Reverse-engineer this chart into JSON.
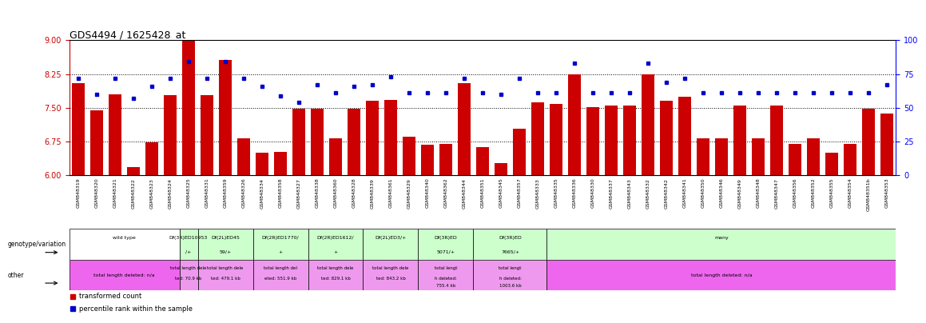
{
  "title": "GDS4494 / 1625428_at",
  "ylim": [
    6,
    9
  ],
  "yticks_left": [
    6,
    6.75,
    7.5,
    8.25,
    9
  ],
  "yticks_right": [
    0,
    25,
    50,
    75,
    100
  ],
  "bar_color": "#CC0000",
  "dot_color": "#0000CC",
  "samples": [
    "GSM848319",
    "GSM848320",
    "GSM848321",
    "GSM848322",
    "GSM848323",
    "GSM848324",
    "GSM848325",
    "GSM848331",
    "GSM848359",
    "GSM848326",
    "GSM848334",
    "GSM848358",
    "GSM848327",
    "GSM848338",
    "GSM848360",
    "GSM848328",
    "GSM848339",
    "GSM848361",
    "GSM848329",
    "GSM848340",
    "GSM848362",
    "GSM848344",
    "GSM848351",
    "GSM848345",
    "GSM848357",
    "GSM848333",
    "GSM848335",
    "GSM848336",
    "GSM848330",
    "GSM848337",
    "GSM848343",
    "GSM848332",
    "GSM848342",
    "GSM848341",
    "GSM848350",
    "GSM848346",
    "GSM848349",
    "GSM848348",
    "GSM848347",
    "GSM848356",
    "GSM848352",
    "GSM848355",
    "GSM848354",
    "GSM848351b",
    "GSM848353"
  ],
  "bar_values": [
    8.05,
    7.45,
    7.8,
    6.18,
    6.73,
    7.78,
    9.0,
    7.78,
    8.57,
    6.82,
    6.5,
    6.52,
    7.47,
    7.47,
    6.82,
    7.47,
    7.65,
    7.67,
    6.85,
    6.68,
    6.7,
    8.05,
    6.63,
    6.28,
    7.03,
    7.62,
    7.58,
    8.25,
    7.52,
    7.55,
    7.55,
    8.25,
    7.65,
    7.75,
    6.82,
    6.83,
    7.55,
    6.83,
    7.55,
    6.7,
    6.82,
    6.5,
    6.7,
    7.47,
    7.38
  ],
  "dot_values_pct": [
    72,
    60,
    72,
    57,
    66,
    72,
    84,
    72,
    84,
    72,
    66,
    59,
    54,
    67,
    61,
    66,
    67,
    73,
    61,
    61,
    61,
    72,
    61,
    60,
    72,
    61,
    61,
    83,
    61,
    61,
    61,
    83,
    69,
    72,
    61,
    61,
    61,
    61,
    61,
    61,
    61,
    61,
    61,
    61,
    67
  ],
  "genotype_groups": [
    {
      "label": "wild type",
      "start": 0,
      "end": 5,
      "color": "#ffffff",
      "sub": ""
    },
    {
      "label": "Df(3R)ED10953",
      "start": 6,
      "end": 6,
      "color": "#ccffcc",
      "sub": "/+"
    },
    {
      "label": "Df(2L)ED45",
      "start": 7,
      "end": 9,
      "color": "#ccffcc",
      "sub": "59/+"
    },
    {
      "label": "Df(2R)ED1770/",
      "start": 10,
      "end": 12,
      "color": "#ccffcc",
      "sub": "+"
    },
    {
      "label": "Df(2R)ED1612/",
      "start": 13,
      "end": 15,
      "color": "#ccffcc",
      "sub": "+"
    },
    {
      "label": "Df(2L)ED3/+",
      "start": 16,
      "end": 18,
      "color": "#ccffcc",
      "sub": ""
    },
    {
      "label": "Df(3R)ED",
      "start": 19,
      "end": 21,
      "color": "#ccffcc",
      "sub": "5071/+"
    },
    {
      "label": "Df(3R)ED",
      "start": 22,
      "end": 25,
      "color": "#ccffcc",
      "sub": "7665/+"
    },
    {
      "label": "many",
      "start": 26,
      "end": 44,
      "color": "#ccffcc",
      "sub": ""
    }
  ],
  "other_groups": [
    {
      "label": "total length deleted: n/a",
      "start": 0,
      "end": 5,
      "color": "#ee66ee",
      "sub": ""
    },
    {
      "label": "total length dele",
      "start": 6,
      "end": 6,
      "color": "#ee99ee",
      "sub": "ted: 70.9 kb"
    },
    {
      "label": "total length dele",
      "start": 7,
      "end": 9,
      "color": "#ee99ee",
      "sub": "ted: 479.1 kb"
    },
    {
      "label": "total length del",
      "start": 10,
      "end": 12,
      "color": "#ee99ee",
      "sub": "eted: 551.9 kb"
    },
    {
      "label": "total length dele",
      "start": 13,
      "end": 15,
      "color": "#ee99ee",
      "sub": "ted: 829.1 kb"
    },
    {
      "label": "total length dele",
      "start": 16,
      "end": 18,
      "color": "#ee99ee",
      "sub": "ted: 843.2 kb"
    },
    {
      "label": "total lengt",
      "start": 19,
      "end": 21,
      "color": "#ee99ee",
      "sub": "h deleted:\n755.4 kb"
    },
    {
      "label": "total lengt",
      "start": 22,
      "end": 25,
      "color": "#ee99ee",
      "sub": "h deleted:\n1003.6 kb"
    },
    {
      "label": "total length deleted: n/a",
      "start": 26,
      "end": 44,
      "color": "#ee66ee",
      "sub": ""
    }
  ],
  "left_labels": [
    "genotype/variation",
    "other"
  ],
  "legend": [
    {
      "color": "#CC0000",
      "label": "transformed count"
    },
    {
      "color": "#0000CC",
      "label": "percentile rank within the sample"
    }
  ]
}
